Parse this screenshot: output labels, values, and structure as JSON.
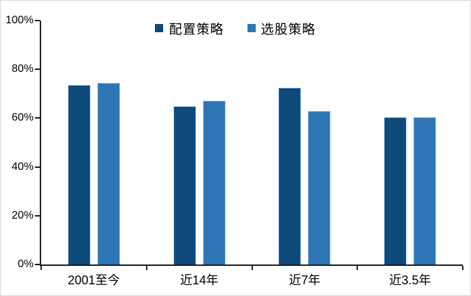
{
  "figure": {
    "background": "#ffffff",
    "border_color": "#d9d9d9",
    "axis_color": "#1a1a1a"
  },
  "chart_data": {
    "type": "bar",
    "title": "",
    "xlabel": "",
    "ylabel": "",
    "categories": [
      "2001至今",
      "近14年",
      "近7年",
      "近3.5年"
    ],
    "series": [
      {
        "name": "配置策略",
        "color": "#0E4A7B",
        "values": [
          73.5,
          65,
          72.5,
          60.5
        ]
      },
      {
        "name": "选股策略",
        "color": "#2E75B6",
        "values": [
          74.5,
          67,
          63,
          60.5
        ]
      }
    ],
    "ylim": [
      0,
      100
    ],
    "ytick_values": [
      0,
      20,
      40,
      60,
      80,
      100
    ],
    "ytick_labels": [
      "0%",
      "20%",
      "40%",
      "60%",
      "80%",
      "100%"
    ],
    "grid": false,
    "legend_position": "top-center",
    "bar_border_color": "#9DC3E6"
  }
}
